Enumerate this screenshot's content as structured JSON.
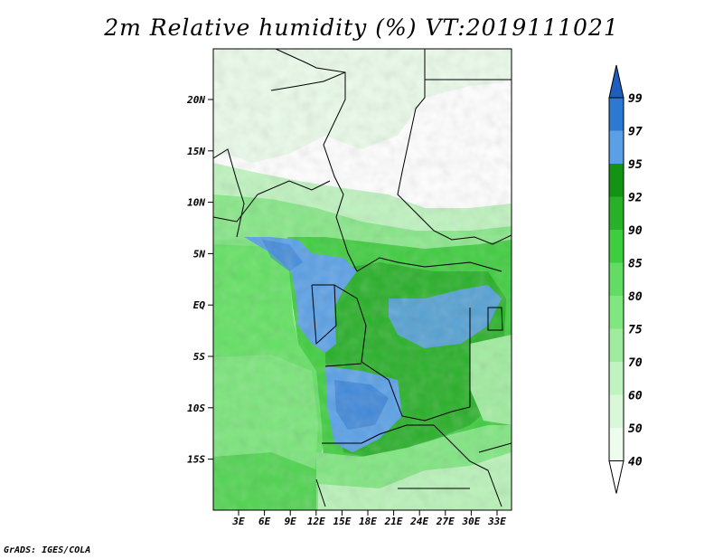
{
  "title": "2m Relative humidity (%) VT:2019111021",
  "footer": "GrADS: IGES/COLA",
  "colors": {
    "ocean": "#63e163",
    "green_light": "#a0f0a0",
    "green_mid": "#6ee36e",
    "green_dark": "#30b030",
    "green_darkest": "#208a20",
    "blue_light": "#5aa0e6",
    "blue_dark": "#2d78d2",
    "land_dry": "#ffffff",
    "border": "#000000"
  },
  "chart_data": {
    "type": "heatmap",
    "title": "2m Relative humidity (%) VT:2019111021",
    "variable": "2m Relative humidity",
    "unit": "%",
    "valid_time": "2019111021",
    "x_range": [
      0,
      35
    ],
    "y_range": [
      -20,
      25
    ],
    "x_ticks": [
      "3E",
      "6E",
      "9E",
      "12E",
      "15E",
      "18E",
      "21E",
      "24E",
      "27E",
      "30E",
      "33E"
    ],
    "y_ticks": [
      "20N",
      "15N",
      "10N",
      "5N",
      "EQ",
      "5S",
      "10S",
      "15S"
    ],
    "colorbar": {
      "levels": [
        "40",
        "50",
        "60",
        "70",
        "75",
        "80",
        "85",
        "90",
        "92",
        "95",
        "97",
        "99"
      ],
      "colors": [
        "#ffffff",
        "#eefcee",
        "#d8f8d8",
        "#bff3bf",
        "#a0ec9f",
        "#80e680",
        "#62dc62",
        "#3fcd3f",
        "#28b028",
        "#139213",
        "#5aa0e6",
        "#2d78d2",
        "#1e5fbd"
      ]
    }
  }
}
